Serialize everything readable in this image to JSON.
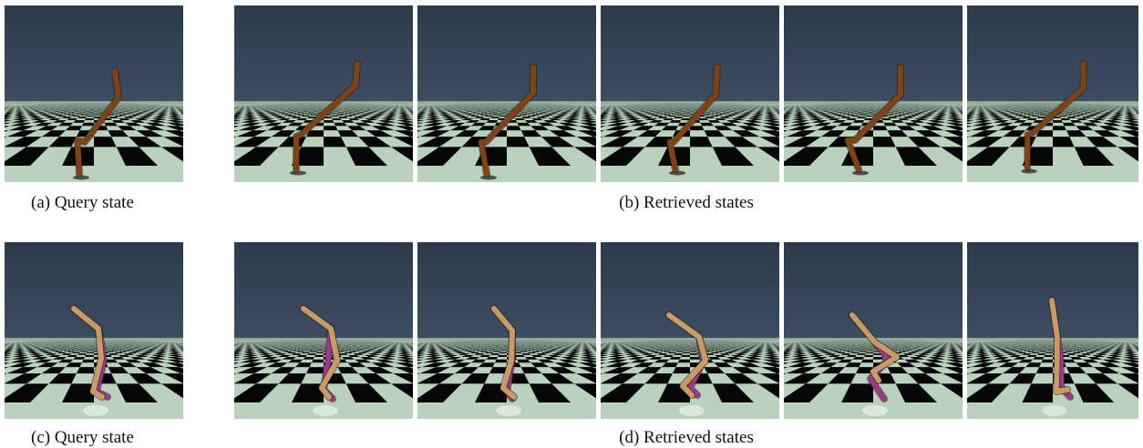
{
  "captions": {
    "a": "(a) Query state",
    "b": "(b) Retrieved states",
    "c": "(c) Query state",
    "d": "(d) Retrieved states"
  },
  "rows": [
    {
      "name": "hopper-row",
      "frames": [
        {
          "id": "query",
          "label": "query-state"
        },
        {
          "id": "r1",
          "label": "retrieved-state-1"
        },
        {
          "id": "r2",
          "label": "retrieved-state-2"
        },
        {
          "id": "r3",
          "label": "retrieved-state-3"
        },
        {
          "id": "r4",
          "label": "retrieved-state-4"
        },
        {
          "id": "r5",
          "label": "retrieved-state-5"
        }
      ]
    },
    {
      "name": "walker-row",
      "frames": [
        {
          "id": "query",
          "label": "query-state"
        },
        {
          "id": "r1",
          "label": "retrieved-state-1"
        },
        {
          "id": "r2",
          "label": "retrieved-state-2"
        },
        {
          "id": "r3",
          "label": "retrieved-state-3"
        },
        {
          "id": "r4",
          "label": "retrieved-state-4"
        },
        {
          "id": "r5",
          "label": "retrieved-state-5"
        }
      ]
    }
  ],
  "colors": {
    "sky_top": "#2c3a4c",
    "sky_bottom": "#4b5e74",
    "tile_light": "#b9d2bd",
    "tile_dark": "#050505",
    "body_brown": "#7b4418",
    "body_tan": "#c79a6a",
    "body_purple": "#9a3a8c"
  }
}
